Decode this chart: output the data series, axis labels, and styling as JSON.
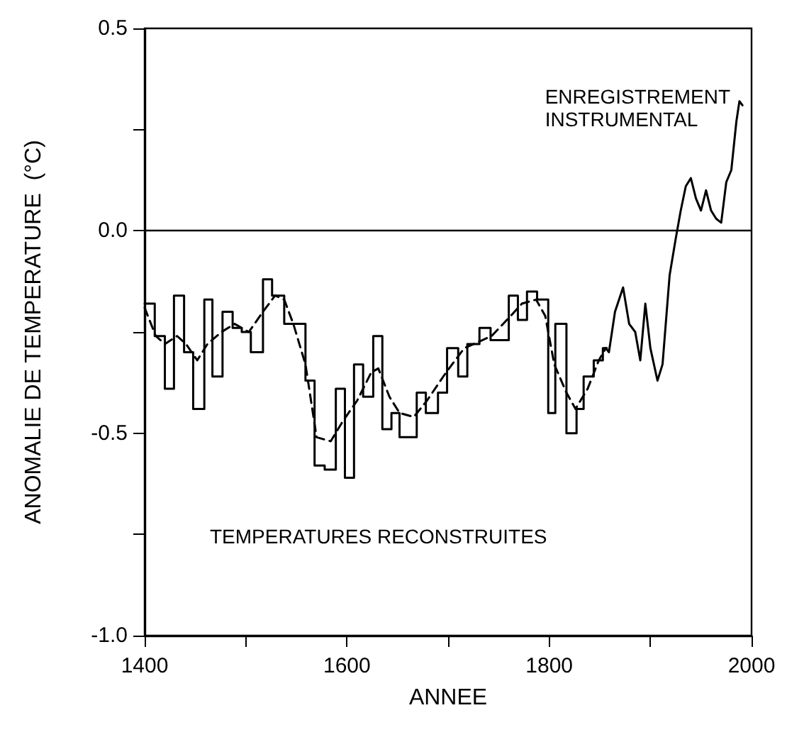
{
  "chart_data": {
    "type": "line",
    "xlabel": "ANNEE",
    "ylabel": "ANOMALIE DE TEMPERATURE  (°C)",
    "xlim": [
      1400,
      2000
    ],
    "xticks": [
      1400,
      {
        "value": 1500,
        "label": null
      },
      1600,
      {
        "value": 1700,
        "label": null
      },
      1800,
      {
        "value": 1900,
        "label": null
      },
      2000
    ],
    "ylim": [
      -1.0,
      0.5
    ],
    "yticks": [
      {
        "value": -1.0,
        "label": "-1.0"
      },
      {
        "value": -0.75,
        "label": null
      },
      -0.5,
      {
        "value": -0.25,
        "label": null
      },
      {
        "value": 0,
        "label": "0.0"
      },
      {
        "value": 0.25,
        "label": null
      },
      0.5
    ],
    "grid": false,
    "marker": "none",
    "ref_lines": [
      {
        "axis": "y",
        "value": 0,
        "color": "#000000",
        "line_style": "solid"
      }
    ],
    "annotations": [
      "ENREGISTREMENT\nINSTRUMENTAL",
      "TEMPERATURES RECONSTRUITES"
    ],
    "series": [
      {
        "type": "step",
        "color": "#000000",
        "line_style": "solid",
        "x": [
          1400,
          1410,
          1420,
          1429,
          1439,
          1448,
          1459,
          1467,
          1477,
          1487,
          1496,
          1505,
          1517,
          1526,
          1538,
          1559,
          1568,
          1578,
          1589,
          1598,
          1607,
          1616,
          1626,
          1635,
          1644,
          1652,
          1669,
          1678,
          1690,
          1699,
          1710,
          1719,
          1731,
          1742,
          1760,
          1769,
          1778,
          1788,
          1799,
          1806,
          1817,
          1827,
          1834,
          1844,
          1853,
          1857
        ],
        "values": [
          -0.18,
          -0.26,
          -0.39,
          -0.16,
          -0.3,
          -0.44,
          -0.17,
          -0.36,
          -0.2,
          -0.24,
          -0.25,
          -0.3,
          -0.12,
          -0.16,
          -0.23,
          -0.37,
          -0.58,
          -0.59,
          -0.39,
          -0.61,
          -0.33,
          -0.41,
          -0.26,
          -0.49,
          -0.45,
          -0.51,
          -0.4,
          -0.45,
          -0.4,
          -0.29,
          -0.36,
          -0.28,
          -0.24,
          -0.27,
          -0.16,
          -0.22,
          -0.15,
          -0.17,
          -0.45,
          -0.23,
          -0.5,
          -0.44,
          -0.36,
          -0.32,
          -0.29,
          -0.29
        ]
      },
      {
        "type": "line",
        "color": "#000000",
        "line_style": "dashed",
        "x": [
          1400,
          1411,
          1420,
          1432,
          1441,
          1452,
          1462,
          1476,
          1489,
          1503,
          1517,
          1529,
          1538,
          1547,
          1559,
          1570,
          1584,
          1596,
          1610,
          1624,
          1631,
          1642,
          1652,
          1666,
          1679,
          1698,
          1716,
          1743,
          1762,
          1773,
          1787,
          1796,
          1805,
          1817,
          1826,
          1838,
          1849,
          1856
        ],
        "values": [
          -0.19,
          -0.26,
          -0.28,
          -0.26,
          -0.28,
          -0.32,
          -0.28,
          -0.25,
          -0.23,
          -0.25,
          -0.2,
          -0.16,
          -0.17,
          -0.23,
          -0.33,
          -0.51,
          -0.52,
          -0.47,
          -0.42,
          -0.35,
          -0.34,
          -0.41,
          -0.45,
          -0.46,
          -0.42,
          -0.35,
          -0.29,
          -0.26,
          -0.21,
          -0.18,
          -0.17,
          -0.21,
          -0.33,
          -0.4,
          -0.44,
          -0.39,
          -0.32,
          -0.29
        ]
      },
      {
        "type": "line",
        "color": "#000000",
        "line_style": "solid",
        "x": [
          1856,
          1859,
          1865,
          1873,
          1879,
          1885,
          1890,
          1895,
          1900,
          1907,
          1912,
          1919,
          1925,
          1930,
          1935,
          1940,
          1945,
          1950,
          1955,
          1960,
          1965,
          1970,
          1975,
          1980,
          1985,
          1988,
          1991
        ],
        "values": [
          -0.29,
          -0.3,
          -0.2,
          -0.14,
          -0.23,
          -0.25,
          -0.32,
          -0.18,
          -0.29,
          -0.37,
          -0.33,
          -0.11,
          -0.02,
          0.05,
          0.11,
          0.13,
          0.08,
          0.05,
          0.1,
          0.05,
          0.03,
          0.02,
          0.12,
          0.15,
          0.27,
          0.32,
          0.31
        ]
      }
    ]
  }
}
